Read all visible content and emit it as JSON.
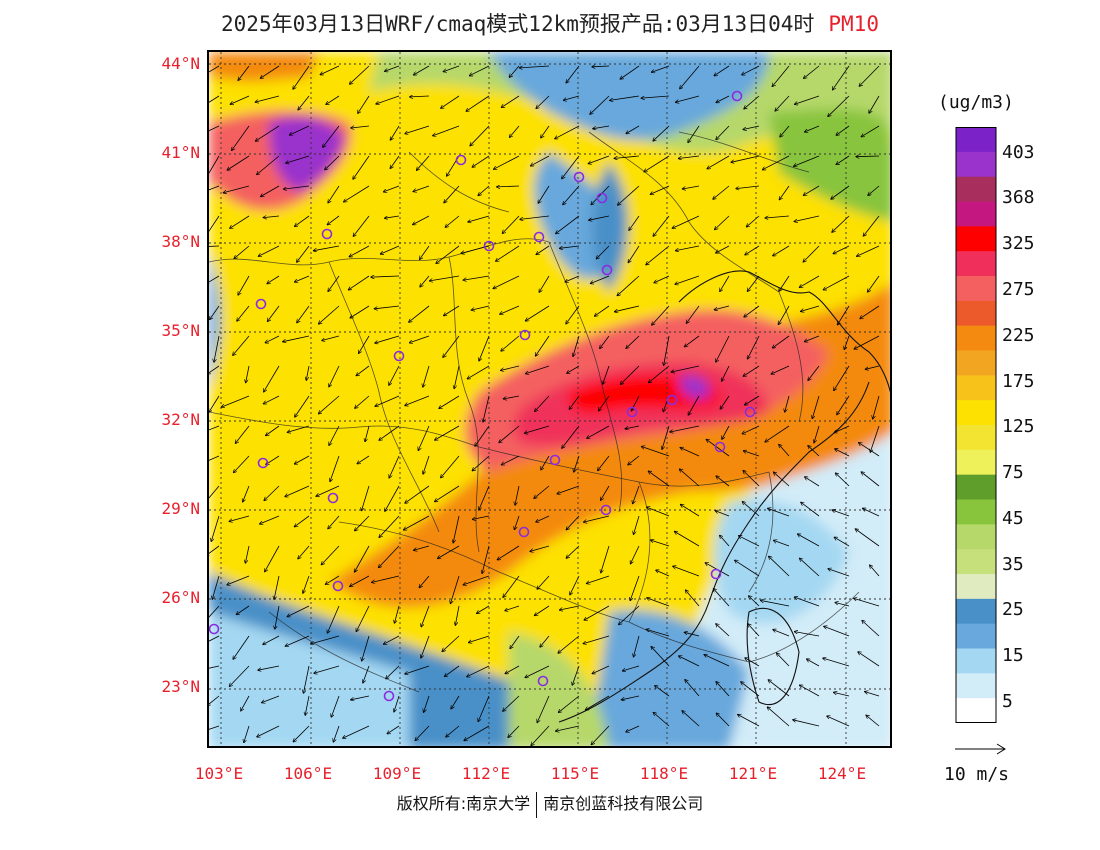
{
  "title": {
    "main": "2025年03月13日WRF/cmaq模式12km预报产品:03月13日04时",
    "pollutant": "PM10"
  },
  "axes": {
    "lat_labels": [
      "44°N",
      "41°N",
      "38°N",
      "35°N",
      "32°N",
      "29°N",
      "26°N",
      "23°N"
    ],
    "lon_labels": [
      "103°E",
      "106°E",
      "109°E",
      "112°E",
      "115°E",
      "118°E",
      "121°E",
      "124°E"
    ]
  },
  "colorbar": {
    "unit": "(ug/m3)",
    "labels": [
      "403",
      "368",
      "325",
      "275",
      "225",
      "175",
      "125",
      "75",
      "45",
      "35",
      "25",
      "15",
      "5"
    ],
    "colors": [
      "#7b22c8",
      "#9a32cc",
      "#a82e5e",
      "#c41880",
      "#ff0000",
      "#f0305a",
      "#f46060",
      "#ec5a2c",
      "#f48a10",
      "#f2a520",
      "#f7c21a",
      "#fde100",
      "#f3e432",
      "#eef15a",
      "#5f9e2a",
      "#88c43c",
      "#b6d86a",
      "#c6e07c",
      "#e0ebc0",
      "#4a90c8",
      "#68a8dc",
      "#a4d8f2",
      "#d2ecf8",
      "#ffffff"
    ]
  },
  "wind_reference": {
    "label": "10 m/s"
  },
  "footer": {
    "left": "版权所有:南京大学",
    "right": "南京创蓝科技有限公司"
  },
  "map": {
    "background": "#fde100",
    "station_color": "#8a2be2",
    "ocean_color": "#d6eefa"
  }
}
